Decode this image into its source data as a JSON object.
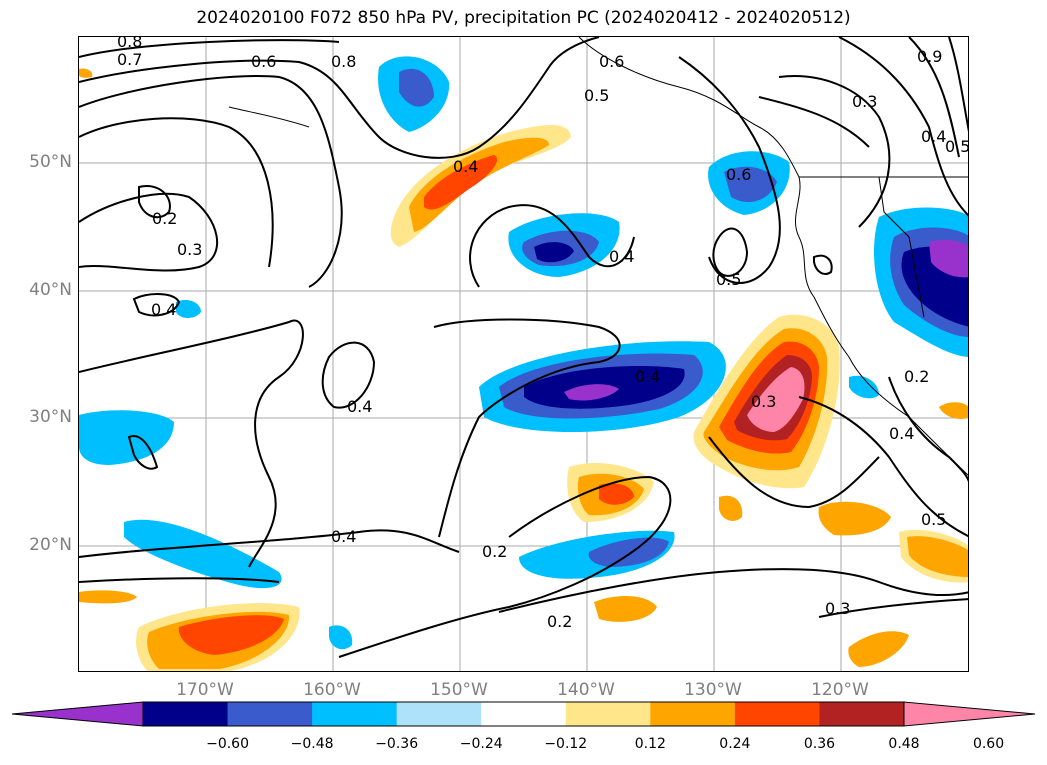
{
  "title": "2024020100 F072 850 hPa PV, precipitation PC (2024020412 - 2024020512)",
  "lat_labels": [
    "50°N",
    "40°N",
    "30°N",
    "20°N"
  ],
  "lon_labels": [
    "170°W",
    "160°W",
    "150°W",
    "140°W",
    "130°W",
    "120°W"
  ],
  "contour_labels": [
    "0.8",
    "0.7",
    "0.6",
    "0.8",
    "0.6",
    "0.5",
    "0.3",
    "0.9",
    "0.4",
    "0.5",
    "0.4",
    "0.6",
    "0.2",
    "0.3",
    "0.4",
    "0.5",
    "0.4",
    "0.4",
    "0.4",
    "0.3",
    "0.2",
    "0.4",
    "0.4",
    "0.2",
    "0.2",
    "0.3",
    "0.5"
  ],
  "colorbar": {
    "colors": [
      "#9932CC",
      "#00008B",
      "#3A5BCC",
      "#00BFFF",
      "#ADE2FA",
      "#FFFFFF",
      "#FFE68A",
      "#FFA500",
      "#FF4500",
      "#B22222",
      "#FF85A8"
    ],
    "ticks": [
      "−0.60",
      "−0.48",
      "−0.36",
      "−0.24",
      "−0.12",
      "0.12",
      "0.24",
      "0.36",
      "0.48",
      "0.60"
    ]
  }
}
